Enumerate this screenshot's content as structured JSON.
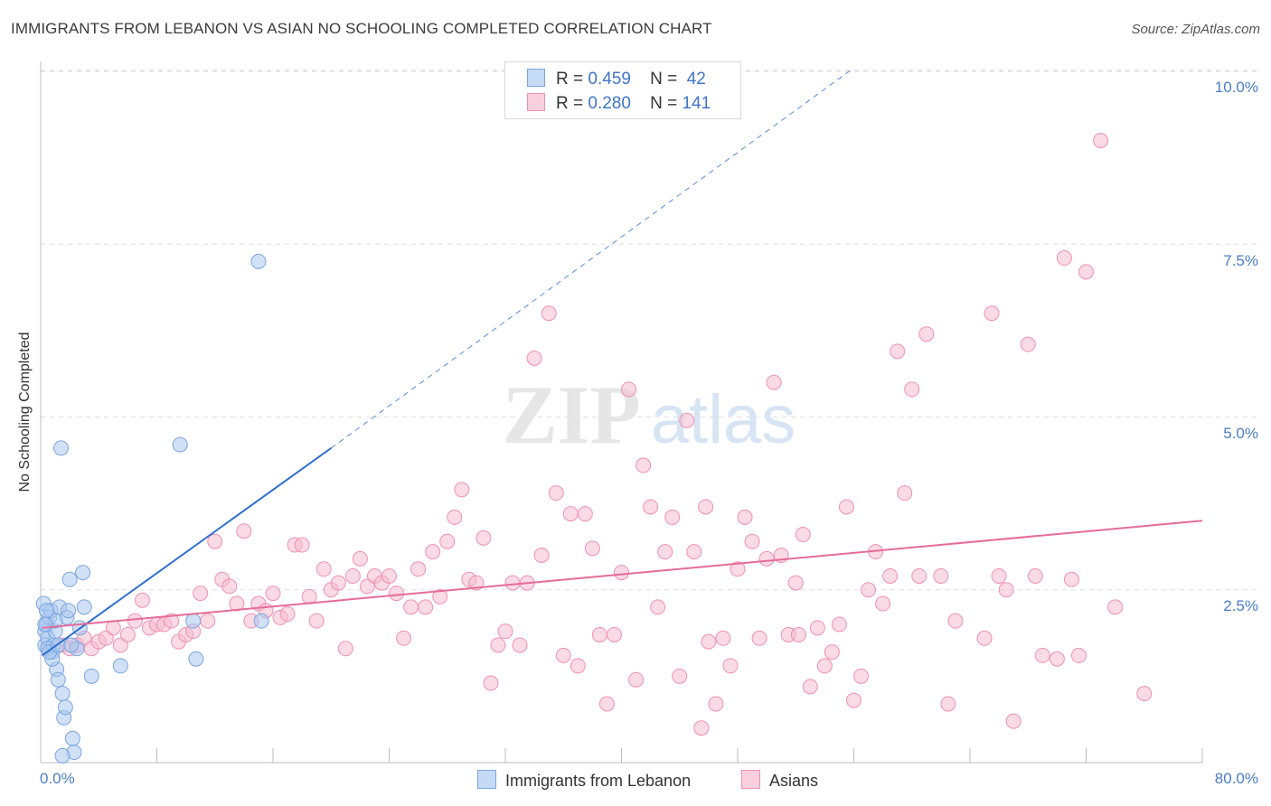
{
  "title": "IMMIGRANTS FROM LEBANON VS ASIAN NO SCHOOLING COMPLETED CORRELATION CHART",
  "source": "Source: ZipAtlas.com",
  "watermark": {
    "zip": "ZIP",
    "atlas": "atlas"
  },
  "legend": {
    "rows": [
      {
        "r_label": "R =",
        "r_value": "0.459",
        "n_label": "N =",
        "n_value": "42"
      },
      {
        "r_label": "R =",
        "r_value": "0.280",
        "n_label": "N =",
        "n_value": "141"
      }
    ]
  },
  "bottom_legend": [
    "Immigrants from Lebanon",
    "Asians"
  ],
  "chart_data": {
    "type": "scatter",
    "title": "IMMIGRANTS FROM LEBANON VS ASIAN NO SCHOOLING COMPLETED CORRELATION CHART",
    "xlabel": "",
    "ylabel": "No Schooling Completed",
    "xlim": [
      0,
      80
    ],
    "ylim": [
      0,
      10.2
    ],
    "x_tick_labels": [
      "0.0%",
      "80.0%"
    ],
    "y_ticks": [
      2.5,
      5.0,
      7.5,
      10.0
    ],
    "y_tick_labels": [
      "2.5%",
      "5.0%",
      "7.5%",
      "10.0%"
    ],
    "grid": "horizontal dashed",
    "legend_position": "top-center",
    "series": [
      {
        "name": "Immigrants from Lebanon",
        "color": "#a9c8f0",
        "stroke": "#7aa5df",
        "trend_color": "#2f6fce",
        "trend": {
          "x0": 0.1,
          "y0": 1.55,
          "x1": 20.0,
          "y1": 4.55,
          "dash_to_x": 56.0,
          "dash_to_y": 10.05
        },
        "points": [
          [
            0.2,
            2.3
          ],
          [
            0.3,
            1.9
          ],
          [
            0.3,
            1.7
          ],
          [
            0.4,
            2.0
          ],
          [
            0.5,
            1.8
          ],
          [
            0.6,
            2.1
          ],
          [
            0.7,
            2.2
          ],
          [
            0.8,
            1.6
          ],
          [
            0.9,
            1.7
          ],
          [
            1.0,
            1.9
          ],
          [
            1.1,
            1.35
          ],
          [
            1.2,
            1.2
          ],
          [
            1.3,
            2.25
          ],
          [
            1.4,
            4.55
          ],
          [
            1.5,
            1.0
          ],
          [
            1.6,
            0.65
          ],
          [
            1.7,
            0.8
          ],
          [
            1.8,
            2.1
          ],
          [
            1.9,
            2.2
          ],
          [
            2.0,
            2.65
          ],
          [
            2.2,
            0.35
          ],
          [
            2.3,
            0.15
          ],
          [
            2.5,
            1.65
          ],
          [
            2.7,
            1.95
          ],
          [
            2.9,
            2.75
          ],
          [
            3.0,
            2.25
          ],
          [
            3.5,
            1.25
          ],
          [
            5.5,
            1.4
          ],
          [
            9.6,
            4.6
          ],
          [
            10.5,
            2.05
          ],
          [
            10.7,
            1.5
          ],
          [
            15.0,
            7.25
          ],
          [
            15.2,
            2.05
          ],
          [
            0.5,
            1.65
          ],
          [
            0.8,
            1.5
          ],
          [
            1.0,
            2.05
          ],
          [
            1.5,
            0.1
          ],
          [
            0.4,
            2.2
          ],
          [
            0.6,
            1.6
          ],
          [
            1.2,
            1.7
          ],
          [
            0.3,
            2.0
          ],
          [
            2.1,
            1.7
          ]
        ]
      },
      {
        "name": "Asians",
        "color": "#f6bcd0",
        "stroke": "#ee91b2",
        "trend_color": "#e56b98",
        "trend": {
          "x0": 0.1,
          "y0": 1.95,
          "x1": 80.0,
          "y1": 3.5
        },
        "points": [
          [
            1.5,
            1.7
          ],
          [
            2.0,
            1.65
          ],
          [
            2.5,
            1.7
          ],
          [
            3.0,
            1.8
          ],
          [
            3.5,
            1.65
          ],
          [
            4.0,
            1.75
          ],
          [
            4.5,
            1.8
          ],
          [
            5.0,
            1.95
          ],
          [
            5.5,
            1.7
          ],
          [
            6.0,
            1.85
          ],
          [
            6.5,
            2.05
          ],
          [
            7.0,
            2.35
          ],
          [
            7.5,
            1.95
          ],
          [
            8.0,
            2.0
          ],
          [
            8.5,
            2.0
          ],
          [
            9.0,
            2.05
          ],
          [
            9.5,
            1.75
          ],
          [
            10.0,
            1.85
          ],
          [
            10.5,
            1.9
          ],
          [
            11.0,
            2.45
          ],
          [
            11.5,
            2.05
          ],
          [
            12.0,
            3.2
          ],
          [
            12.5,
            2.65
          ],
          [
            13.0,
            2.55
          ],
          [
            13.5,
            2.3
          ],
          [
            14.0,
            3.35
          ],
          [
            14.5,
            2.05
          ],
          [
            15.0,
            2.3
          ],
          [
            15.5,
            2.2
          ],
          [
            16.0,
            2.45
          ],
          [
            16.5,
            2.1
          ],
          [
            17.0,
            2.15
          ],
          [
            17.5,
            3.15
          ],
          [
            18.0,
            3.15
          ],
          [
            18.5,
            2.4
          ],
          [
            19.0,
            2.05
          ],
          [
            19.5,
            2.8
          ],
          [
            20.0,
            2.5
          ],
          [
            20.5,
            2.6
          ],
          [
            21.0,
            1.65
          ],
          [
            21.5,
            2.7
          ],
          [
            22.0,
            2.95
          ],
          [
            22.5,
            2.55
          ],
          [
            23.0,
            2.7
          ],
          [
            23.5,
            2.6
          ],
          [
            24.0,
            2.7
          ],
          [
            24.5,
            2.45
          ],
          [
            25.0,
            1.8
          ],
          [
            25.5,
            2.25
          ],
          [
            26.0,
            2.8
          ],
          [
            26.5,
            2.25
          ],
          [
            27.0,
            3.05
          ],
          [
            27.5,
            2.4
          ],
          [
            28.0,
            3.2
          ],
          [
            28.5,
            3.55
          ],
          [
            29.0,
            3.95
          ],
          [
            29.5,
            2.65
          ],
          [
            30.0,
            2.6
          ],
          [
            30.5,
            3.25
          ],
          [
            31.0,
            1.15
          ],
          [
            31.5,
            1.7
          ],
          [
            32.0,
            1.9
          ],
          [
            32.5,
            2.6
          ],
          [
            33.0,
            1.7
          ],
          [
            33.5,
            2.6
          ],
          [
            34.0,
            5.85
          ],
          [
            34.5,
            3.0
          ],
          [
            35.0,
            6.5
          ],
          [
            35.5,
            3.9
          ],
          [
            36.0,
            1.55
          ],
          [
            36.5,
            3.6
          ],
          [
            37.0,
            1.4
          ],
          [
            37.5,
            3.6
          ],
          [
            38.0,
            3.1
          ],
          [
            38.5,
            1.85
          ],
          [
            39.0,
            0.85
          ],
          [
            39.5,
            1.85
          ],
          [
            40.0,
            2.75
          ],
          [
            40.5,
            5.4
          ],
          [
            41.0,
            1.2
          ],
          [
            41.5,
            4.3
          ],
          [
            42.0,
            3.7
          ],
          [
            42.5,
            2.25
          ],
          [
            43.0,
            3.05
          ],
          [
            43.5,
            3.55
          ],
          [
            44.0,
            1.25
          ],
          [
            44.5,
            4.95
          ],
          [
            45.0,
            3.05
          ],
          [
            45.5,
            0.5
          ],
          [
            46.0,
            1.75
          ],
          [
            46.5,
            0.85
          ],
          [
            47.0,
            1.8
          ],
          [
            47.5,
            1.4
          ],
          [
            48.0,
            2.8
          ],
          [
            48.5,
            3.55
          ],
          [
            49.0,
            3.2
          ],
          [
            49.5,
            1.8
          ],
          [
            50.0,
            2.95
          ],
          [
            50.5,
            5.5
          ],
          [
            51.0,
            3.0
          ],
          [
            51.5,
            1.85
          ],
          [
            52.0,
            2.6
          ],
          [
            52.5,
            3.3
          ],
          [
            53.0,
            1.1
          ],
          [
            53.5,
            1.95
          ],
          [
            54.0,
            1.4
          ],
          [
            54.5,
            1.6
          ],
          [
            55.0,
            2.0
          ],
          [
            55.5,
            3.7
          ],
          [
            56.0,
            0.9
          ],
          [
            56.5,
            1.25
          ],
          [
            57.0,
            2.5
          ],
          [
            57.5,
            3.05
          ],
          [
            58.0,
            2.3
          ],
          [
            58.5,
            2.7
          ],
          [
            59.0,
            5.95
          ],
          [
            59.5,
            3.9
          ],
          [
            60.0,
            5.4
          ],
          [
            60.5,
            2.7
          ],
          [
            61.0,
            6.2
          ],
          [
            62.0,
            2.7
          ],
          [
            62.5,
            0.85
          ],
          [
            63.0,
            2.05
          ],
          [
            65.0,
            1.8
          ],
          [
            65.5,
            6.5
          ],
          [
            66.0,
            2.7
          ],
          [
            66.5,
            2.5
          ],
          [
            67.0,
            0.6
          ],
          [
            68.0,
            6.05
          ],
          [
            68.5,
            2.7
          ],
          [
            69.0,
            1.55
          ],
          [
            70.0,
            1.5
          ],
          [
            70.5,
            7.3
          ],
          [
            71.0,
            2.65
          ],
          [
            71.5,
            1.55
          ],
          [
            72.0,
            7.1
          ],
          [
            73.0,
            9.0
          ],
          [
            74.0,
            2.25
          ],
          [
            76.0,
            1.0
          ],
          [
            45.8,
            3.7
          ],
          [
            52.2,
            1.85
          ]
        ]
      }
    ]
  },
  "colors": {
    "axis": "#bdbdbd",
    "grid": "#dedede",
    "tick_text": "#4a7cc8"
  }
}
